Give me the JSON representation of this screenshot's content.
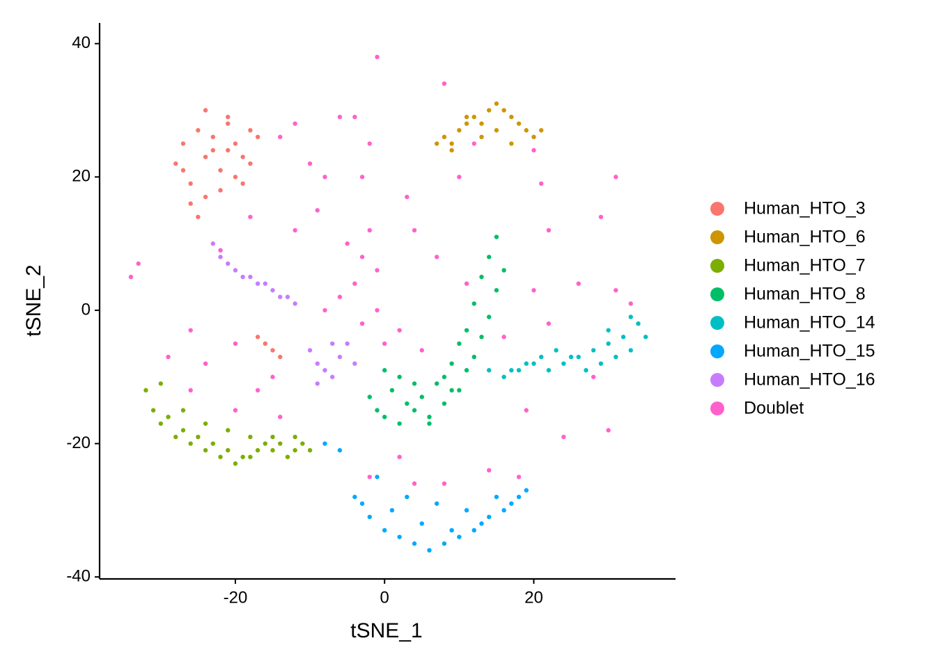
{
  "chart_data": {
    "type": "scatter",
    "x_label": "tSNE_1",
    "y_label": "tSNE_2",
    "xlim": [
      -38.2,
      39
    ],
    "ylim": [
      -40.3,
      43.1
    ],
    "xticks": [
      -20,
      0,
      20
    ],
    "yticks": [
      -40,
      -20,
      0,
      20,
      40
    ],
    "legend": "right",
    "series": [
      {
        "name": "Doublet",
        "color": "#FF61CC",
        "x": [
          -3,
          -5,
          -1,
          -4,
          -2,
          -6,
          -8,
          -3,
          0,
          -1,
          -12,
          -10,
          -14,
          -8,
          -6,
          -4,
          -2,
          -9,
          -3,
          3,
          -1,
          8,
          11,
          7,
          4,
          2,
          5,
          -20,
          -26,
          -24,
          -20,
          -14,
          -15,
          -17,
          2,
          8,
          14,
          18,
          4,
          -2,
          12,
          20,
          21,
          22,
          29,
          31,
          26,
          31,
          33,
          22,
          24,
          30,
          28,
          19,
          -34,
          -33,
          -26,
          -29,
          -22,
          10,
          -18,
          -12,
          16,
          20
        ],
        "values": [
          8,
          10,
          6,
          4,
          12,
          2,
          0,
          -2,
          -5,
          0,
          28,
          22,
          26,
          20,
          29,
          29,
          25,
          15,
          20,
          17,
          38,
          34,
          4,
          8,
          12,
          -3,
          -6,
          -5,
          -12,
          -8,
          -15,
          -16,
          -10,
          -12,
          -22,
          -26,
          -24,
          -25,
          -26,
          -25,
          25,
          24,
          19,
          12,
          14,
          20,
          4,
          3,
          1,
          -2,
          -19,
          -18,
          -10,
          -15,
          5,
          7,
          -3,
          -7,
          9,
          20,
          14,
          12,
          -4,
          3
        ]
      },
      {
        "name": "Human_HTO_3",
        "color": "#F8766D",
        "x": [
          -28,
          -27,
          -26,
          -25,
          -24,
          -23,
          -22,
          -21,
          -20,
          -19,
          -18,
          -17,
          -26,
          -24,
          -22,
          -20,
          -18,
          -25,
          -23,
          -21,
          -19,
          -27,
          -24,
          -21,
          -16,
          -15,
          -17,
          -14
        ],
        "values": [
          22,
          25,
          19,
          27,
          17,
          24,
          21,
          28,
          25,
          23,
          27,
          26,
          16,
          30,
          18,
          20,
          22,
          14,
          26,
          29,
          19,
          21,
          23,
          24,
          -5,
          -6,
          -4,
          -7
        ]
      },
      {
        "name": "Human_HTO_6",
        "color": "#CD9600",
        "x": [
          7,
          8,
          9,
          10,
          11,
          12,
          13,
          14,
          15,
          16,
          17,
          18,
          19,
          20,
          21,
          13,
          15,
          17,
          11,
          9
        ],
        "values": [
          25,
          26,
          24,
          27,
          28,
          29,
          28,
          30,
          31,
          30,
          29,
          28,
          27,
          26,
          27,
          26,
          27,
          25,
          29,
          25
        ]
      },
      {
        "name": "Human_HTO_7",
        "color": "#7CAE00",
        "x": [
          -32,
          -31,
          -30,
          -29,
          -28,
          -27,
          -26,
          -25,
          -24,
          -23,
          -22,
          -21,
          -20,
          -19,
          -18,
          -17,
          -16,
          -15,
          -14,
          -13,
          -12,
          -11,
          -10,
          -30,
          -27,
          -24,
          -21,
          -18,
          -15,
          -12
        ],
        "values": [
          -12,
          -15,
          -17,
          -16,
          -19,
          -18,
          -20,
          -19,
          -21,
          -20,
          -22,
          -21,
          -23,
          -22,
          -22,
          -21,
          -20,
          -21,
          -20,
          -22,
          -21,
          -20,
          -21,
          -11,
          -15,
          -17,
          -18,
          -19,
          -19,
          -19
        ]
      },
      {
        "name": "Human_HTO_8",
        "color": "#00BE67",
        "x": [
          15,
          14,
          16,
          13,
          15,
          12,
          14,
          11,
          13,
          10,
          12,
          9,
          11,
          8,
          10,
          7,
          5,
          3,
          1,
          -1,
          -2,
          0,
          2,
          4,
          6,
          8,
          9,
          2,
          4,
          6,
          0
        ],
        "values": [
          11,
          8,
          6,
          5,
          3,
          1,
          -1,
          -3,
          -4,
          -5,
          -7,
          -8,
          -9,
          -10,
          -12,
          -11,
          -13,
          -14,
          -12,
          -15,
          -13,
          -16,
          -17,
          -15,
          -17,
          -14,
          -12,
          -10,
          -11,
          -16,
          -9
        ]
      },
      {
        "name": "Human_HTO_14",
        "color": "#00BFC4",
        "x": [
          14,
          16,
          18,
          20,
          22,
          24,
          26,
          28,
          30,
          32,
          34,
          35,
          33,
          31,
          29,
          27,
          25,
          23,
          21,
          19,
          17,
          33,
          30
        ],
        "values": [
          -9,
          -10,
          -9,
          -8,
          -9,
          -8,
          -7,
          -6,
          -5,
          -4,
          -2,
          -4,
          -6,
          -7,
          -8,
          -9,
          -7,
          -6,
          -7,
          -8,
          -9,
          -1,
          -3
        ]
      },
      {
        "name": "Human_HTO_15",
        "color": "#00A9FF",
        "x": [
          -4,
          -2,
          0,
          2,
          4,
          6,
          8,
          10,
          12,
          14,
          16,
          18,
          19,
          -3,
          1,
          5,
          9,
          13,
          17,
          3,
          7,
          11,
          15,
          -1,
          -6,
          -8
        ],
        "values": [
          -28,
          -31,
          -33,
          -34,
          -35,
          -36,
          -35,
          -34,
          -33,
          -31,
          -30,
          -28,
          -27,
          -29,
          -30,
          -32,
          -33,
          -32,
          -29,
          -28,
          -29,
          -30,
          -28,
          -25,
          -21,
          -20
        ]
      },
      {
        "name": "Human_HTO_16",
        "color": "#C77CFF",
        "x": [
          -23,
          -22,
          -21,
          -20,
          -19,
          -18,
          -17,
          -16,
          -15,
          -14,
          -13,
          -12,
          -10,
          -9,
          -8,
          -7,
          -6,
          -5,
          -9,
          -7,
          -4
        ],
        "values": [
          10,
          8,
          7,
          6,
          5,
          5,
          4,
          4,
          3,
          2,
          2,
          1,
          -6,
          -8,
          -9,
          -10,
          -7,
          -5,
          -11,
          -5,
          -8
        ]
      }
    ],
    "legend_order": [
      1,
      2,
      3,
      4,
      5,
      6,
      7,
      0
    ]
  }
}
